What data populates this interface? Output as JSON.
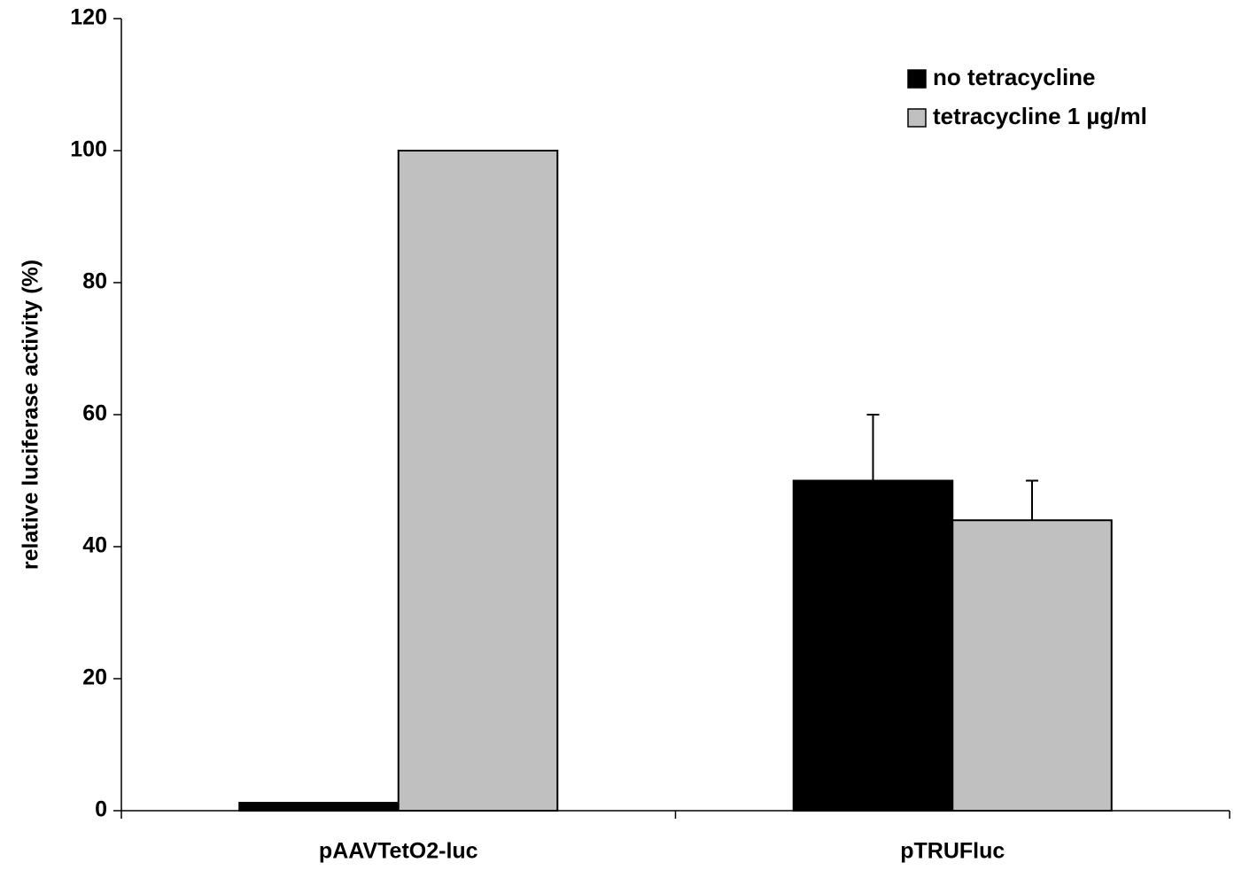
{
  "chart_data": {
    "type": "bar",
    "y_label": "relative luciferase activity (%)",
    "categories": [
      "pAAVTetO2-luc",
      "pTRUFluc"
    ],
    "series": [
      {
        "name": "no tetracycline",
        "color": "#000000",
        "values": [
          1.2,
          50
        ],
        "errors": [
          null,
          10
        ]
      },
      {
        "name": "tetracycline 1 µg/ml",
        "color": "#c0c0c0",
        "values": [
          100,
          44
        ],
        "errors": [
          null,
          6
        ]
      }
    ],
    "ylim": [
      0,
      120
    ],
    "yticks": [
      0,
      20,
      40,
      60,
      80,
      100,
      120
    ],
    "grid": false,
    "legend": "top-right"
  }
}
